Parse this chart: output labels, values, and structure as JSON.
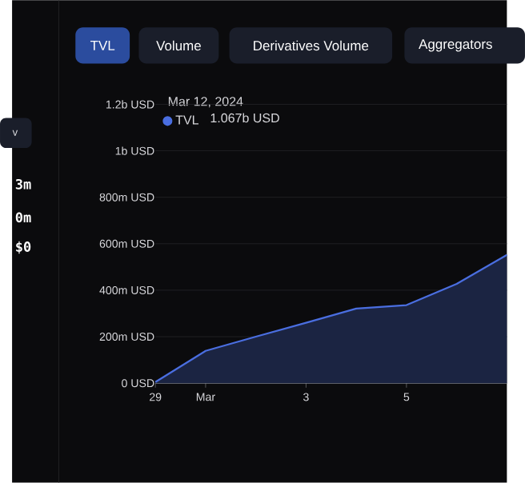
{
  "chart_data": {
    "type": "area",
    "x": [
      "2024-02-29",
      "2024-03-01",
      "2024-03-02",
      "2024-03-03",
      "2024-03-04",
      "2024-03-05",
      "2024-03-06",
      "2024-03-07"
    ],
    "series": [
      {
        "name": "TVL",
        "color": "#4a6ee0",
        "values": [
          5000000,
          139000000,
          200000000,
          260000000,
          321000000,
          336000000,
          427000000,
          552000000
        ]
      }
    ],
    "xlim": [
      "2024-02-29",
      "2024-03-07"
    ],
    "xticks": [
      {
        "value": "2024-02-29",
        "label": "29"
      },
      {
        "value": "2024-03-01",
        "label": "Mar"
      },
      {
        "value": "2024-03-03",
        "label": "3"
      },
      {
        "value": "2024-03-05",
        "label": "5"
      }
    ],
    "ylim": [
      0,
      1200000000
    ],
    "yticks": [
      {
        "value": 0,
        "label": "0 USD"
      },
      {
        "value": 200000000,
        "label": "200m USD"
      },
      {
        "value": 400000000,
        "label": "400m USD"
      },
      {
        "value": 600000000,
        "label": "600m USD"
      },
      {
        "value": 800000000,
        "label": "800m USD"
      },
      {
        "value": 1000000000,
        "label": "1b USD"
      },
      {
        "value": 1200000000,
        "label": "1.2b USD"
      }
    ],
    "grid": "y",
    "legend": "top left",
    "annotations": [
      "TVL",
      "Volume",
      "Derivatives Volume",
      "Aggregators",
      "Mar 12, 2024",
      "1.067b USD",
      "v",
      "3m",
      "0m",
      "$0"
    ]
  }
}
